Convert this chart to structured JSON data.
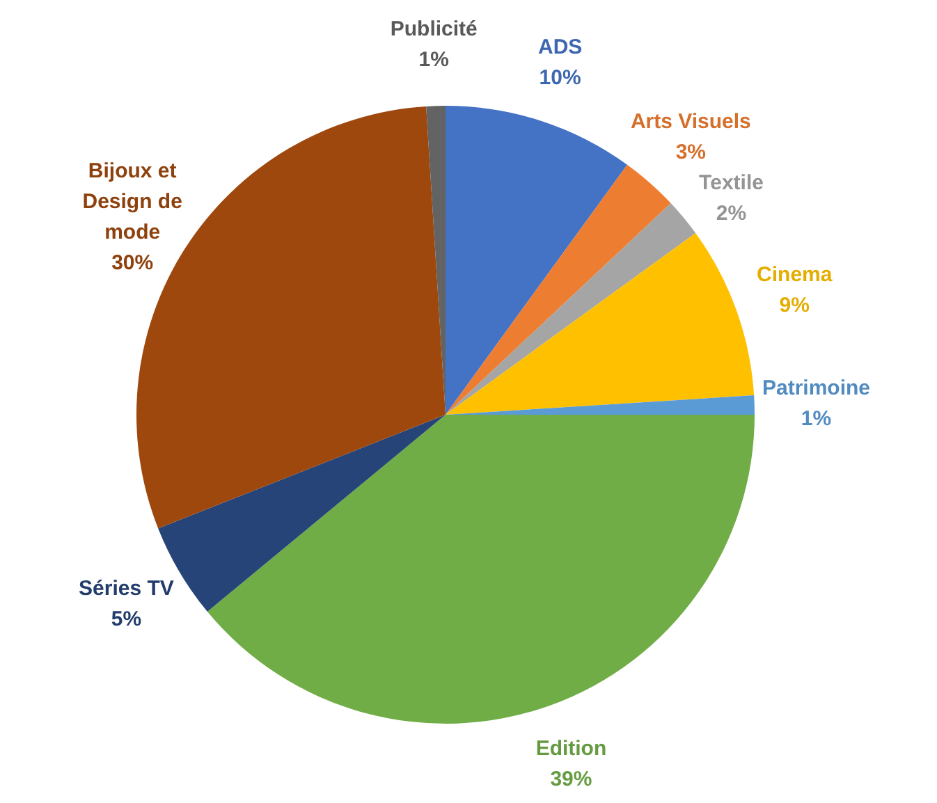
{
  "chart_data": {
    "type": "pie",
    "categories": [
      "ADS",
      "Arts Visuels",
      "Textile",
      "Cinema",
      "Patrimoine",
      "Edition",
      "Séries TV",
      "Bijoux et Design de mode",
      "Publicité"
    ],
    "values": [
      10,
      3,
      2,
      9,
      1,
      39,
      5,
      30,
      1
    ],
    "colors": [
      "#4472c4",
      "#ed7d31",
      "#a5a5a5",
      "#ffc000",
      "#5b9bd5",
      "#70ad47",
      "#264478",
      "#9e480e",
      "#636363"
    ],
    "value_labels": [
      "10%",
      "3%",
      "2%",
      "9%",
      "1%",
      "39%",
      "5%",
      "30%",
      "1%"
    ]
  }
}
